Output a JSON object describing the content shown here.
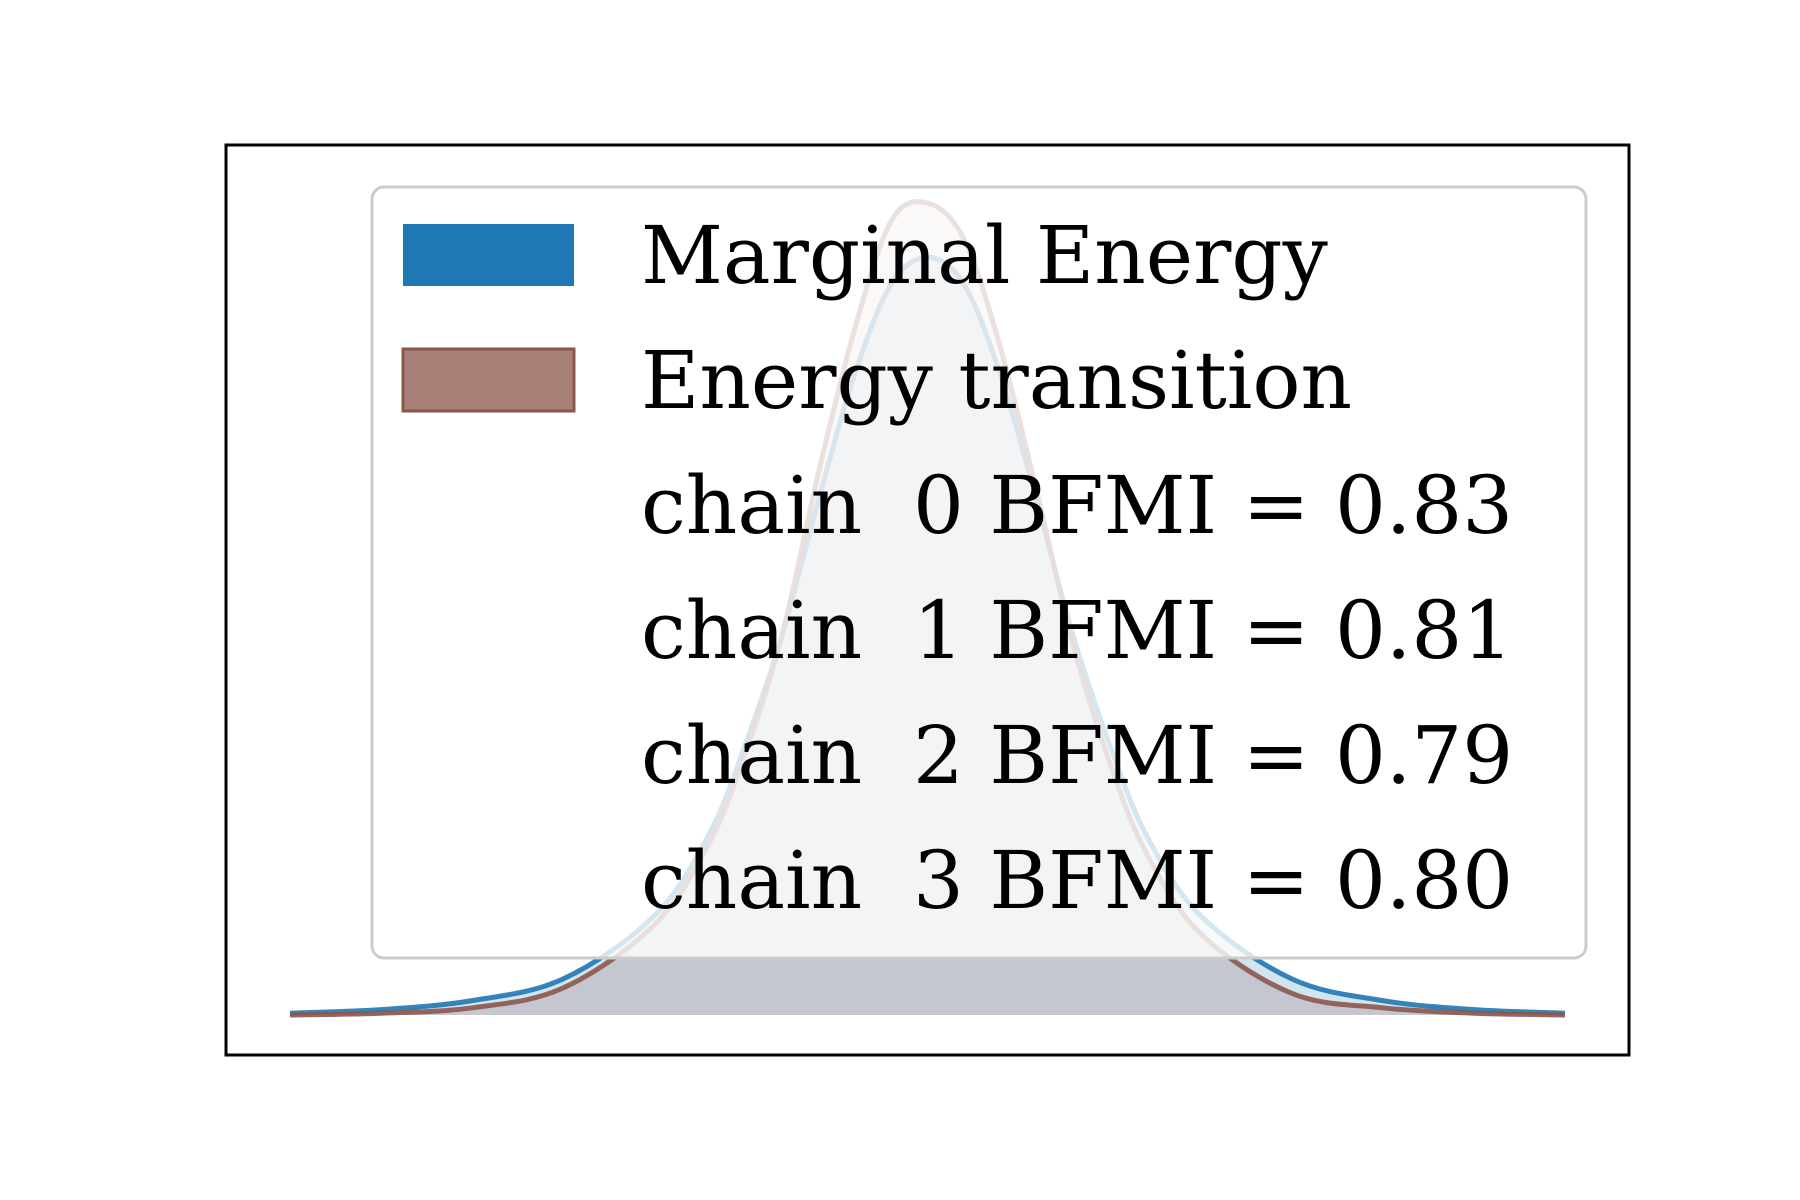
{
  "chart_data": {
    "type": "area",
    "title": "",
    "xlabel": "",
    "ylabel": "",
    "xlim": [
      -3.5,
      3.5
    ],
    "ylim": [
      0,
      0.46
    ],
    "axes_ticks": "none",
    "grid": false,
    "legend_position": "upper-right",
    "series": [
      {
        "name": "Marginal Energy",
        "color": "#1f77b4",
        "x": [
          -3.5,
          -3.0,
          -2.5,
          -2.0,
          -1.5,
          -1.2,
          -1.0,
          -0.8,
          -0.6,
          -0.4,
          -0.2,
          0.0,
          0.2,
          0.4,
          0.6,
          0.8,
          1.0,
          1.2,
          1.5,
          2.0,
          2.5,
          3.0,
          3.5
        ],
        "y": [
          0.001,
          0.003,
          0.008,
          0.02,
          0.055,
          0.1,
          0.15,
          0.21,
          0.285,
          0.355,
          0.405,
          0.42,
          0.405,
          0.355,
          0.285,
          0.21,
          0.15,
          0.1,
          0.055,
          0.02,
          0.008,
          0.003,
          0.001
        ]
      },
      {
        "name": "Energy transition",
        "color": "#8c564b",
        "x": [
          -3.5,
          -3.0,
          -2.5,
          -2.0,
          -1.5,
          -1.2,
          -1.0,
          -0.8,
          -0.6,
          -0.4,
          -0.2,
          0.0,
          0.2,
          0.4,
          0.6,
          0.8,
          1.0,
          1.2,
          1.5,
          2.0,
          2.5,
          3.0,
          3.5
        ],
        "y": [
          0.0,
          0.001,
          0.004,
          0.015,
          0.05,
          0.095,
          0.145,
          0.21,
          0.3,
          0.38,
          0.44,
          0.45,
          0.43,
          0.37,
          0.29,
          0.205,
          0.14,
          0.09,
          0.045,
          0.012,
          0.004,
          0.001,
          0.0
        ]
      }
    ],
    "legend": [
      "Marginal Energy",
      "Energy transition",
      "chain  0 BFMI = 0.83",
      "chain  1 BFMI = 0.81",
      "chain  2 BFMI = 0.79",
      "chain  3 BFMI = 0.80"
    ]
  }
}
